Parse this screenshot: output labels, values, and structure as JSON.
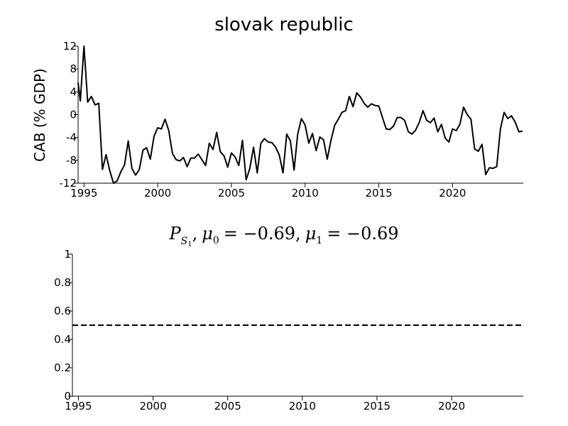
{
  "chart_data": [
    {
      "type": "line",
      "title": "slovak republic",
      "ylabel": "CAB (% GDP)",
      "xlim": [
        1994.6,
        2024.8
      ],
      "ylim": [
        -12,
        12
      ],
      "xticks": [
        "1995",
        "2000",
        "2005",
        "2010",
        "2015",
        "2020"
      ],
      "yticks": [
        "12",
        "8",
        "4",
        "0",
        "-4",
        "-8",
        "-12"
      ],
      "series": [
        {
          "x": [
            1994.5,
            1994.75,
            1995.0,
            1995.25,
            1995.5,
            1995.75,
            1996.0,
            1996.25,
            1996.5,
            1996.75,
            1997.0,
            1997.25,
            1997.5,
            1997.75,
            1998.0,
            1998.25,
            1998.5,
            1998.75,
            1999.0,
            1999.25,
            1999.5,
            1999.75,
            2000.0,
            2000.25,
            2000.5,
            2000.75,
            2001.0,
            2001.25,
            2001.5,
            2001.75,
            2002.0,
            2002.25,
            2002.5,
            2002.75,
            2003.0,
            2003.25,
            2003.5,
            2003.75,
            2004.0,
            2004.25,
            2004.5,
            2004.75,
            2005.0,
            2005.25,
            2005.5,
            2005.75,
            2006.0,
            2006.25,
            2006.5,
            2006.75,
            2007.0,
            2007.25,
            2007.5,
            2007.75,
            2008.0,
            2008.25,
            2008.5,
            2008.75,
            2009.0,
            2009.25,
            2009.5,
            2009.75,
            2010.0,
            2010.25,
            2010.5,
            2010.75,
            2011.0,
            2011.25,
            2011.5,
            2011.75,
            2012.0,
            2012.25,
            2012.5,
            2012.75,
            2013.0,
            2013.25,
            2013.5,
            2013.75,
            2014.0,
            2014.25,
            2014.5,
            2014.75,
            2015.0,
            2015.25,
            2015.5,
            2015.75,
            2016.0,
            2016.25,
            2016.5,
            2016.75,
            2017.0,
            2017.25,
            2017.5,
            2017.75,
            2018.0,
            2018.25,
            2018.5,
            2018.75,
            2019.0,
            2019.25,
            2019.5,
            2019.75,
            2020.0,
            2020.25,
            2020.5,
            2020.75,
            2021.0,
            2021.25,
            2021.5,
            2021.75,
            2022.0,
            2022.25,
            2022.5,
            2022.75,
            2023.0,
            2023.25,
            2023.5,
            2023.75,
            2024.0,
            2024.25,
            2024.5,
            2024.75
          ],
          "values": [
            5.6,
            2.4,
            12.0,
            2.2,
            3.2,
            1.7,
            2.0,
            -9.6,
            -7.0,
            -9.8,
            -12.0,
            -11.6,
            -10.0,
            -8.8,
            -4.6,
            -9.4,
            -10.6,
            -9.6,
            -6.2,
            -5.8,
            -7.8,
            -3.8,
            -2.3,
            -2.5,
            -0.8,
            -2.8,
            -6.8,
            -7.9,
            -8.1,
            -7.5,
            -9.1,
            -7.6,
            -7.6,
            -6.9,
            -7.9,
            -8.9,
            -5.0,
            -6.1,
            -3.1,
            -6.5,
            -7.2,
            -9.2,
            -6.7,
            -7.4,
            -8.9,
            -4.5,
            -11.4,
            -9.4,
            -5.7,
            -10.2,
            -5.0,
            -4.2,
            -4.8,
            -4.9,
            -5.7,
            -7.1,
            -10.2,
            -3.4,
            -4.6,
            -9.7,
            -3.4,
            -0.7,
            -1.8,
            -5.0,
            -3.3,
            -6.3,
            -3.9,
            -4.4,
            -7.8,
            -4.5,
            -1.9,
            -0.8,
            0.4,
            0.7,
            3.2,
            1.4,
            3.8,
            3.1,
            2.0,
            1.3,
            1.9,
            1.6,
            1.5,
            -0.5,
            -2.5,
            -2.6,
            -2.0,
            -0.5,
            -0.5,
            -1.0,
            -3.0,
            -3.4,
            -2.7,
            -1.3,
            0.7,
            -1.0,
            -1.4,
            -0.6,
            -3.0,
            -1.7,
            -4.1,
            -4.8,
            -2.5,
            -2.8,
            -1.7,
            1.3,
            0.0,
            -0.8,
            -6.0,
            -6.4,
            -5.2,
            -10.5,
            -9.3,
            -9.4,
            -9.1,
            -2.5,
            0.4,
            -0.7,
            -0.2,
            -1.3,
            -3.0,
            -2.9
          ]
        }
      ]
    },
    {
      "type": "line",
      "title": "P_{S_1}, μ_0 = −0.69, μ_1 = −0.69",
      "xlim": [
        1994.6,
        2024.8
      ],
      "ylim": [
        0,
        1
      ],
      "xticks": [
        "1995",
        "2000",
        "2005",
        "2010",
        "2015",
        "2020"
      ],
      "yticks": [
        "1",
        "0.8",
        "0.6",
        "0.4",
        "0.2",
        "0"
      ],
      "series": [
        {
          "style": "dashed",
          "x": [
            1994.6,
            2024.8
          ],
          "values": [
            0.5,
            0.5
          ]
        }
      ]
    }
  ],
  "math_title": {
    "P": "P",
    "S": "S",
    "one": "1",
    "mu": "μ",
    "zero": "0",
    "eq0": "= −0.69,",
    "eq1": "= −0.69",
    "comma": ","
  }
}
